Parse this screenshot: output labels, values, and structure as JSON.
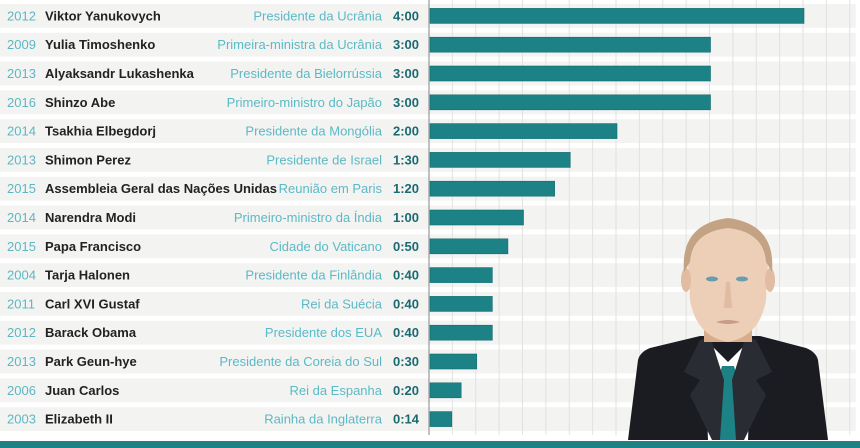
{
  "chart_data": {
    "type": "bar",
    "orientation": "horizontal",
    "unit": "minutes",
    "xlim": [
      0,
      270
    ],
    "grid": true,
    "bar_color": "#1d8286",
    "rows": [
      {
        "year": "2012",
        "name": "Viktor Yanukovych",
        "role": "Presidente da Ucrânia",
        "label": "4:00",
        "value": 240
      },
      {
        "year": "2009",
        "name": "Yulia Timoshenko",
        "role": "Primeira-ministra da Ucrânia",
        "label": "3:00",
        "value": 180
      },
      {
        "year": "2013",
        "name": "Alyaksandr Lukashenka",
        "role": "Presidente da Bielorrússia",
        "label": "3:00",
        "value": 180
      },
      {
        "year": "2016",
        "name": "Shinzo Abe",
        "role": "Primeiro-ministro do Japão",
        "label": "3:00",
        "value": 180
      },
      {
        "year": "2014",
        "name": "Tsakhia Elbegdorj",
        "role": "Presidente da Mongólia",
        "label": "2:00",
        "value": 120
      },
      {
        "year": "2013",
        "name": "Shimon Perez",
        "role": "Presidente de Israel",
        "label": "1:30",
        "value": 90
      },
      {
        "year": "2015",
        "name": "Assembleia Geral das Nações Unidas",
        "role": "Reunião em Paris",
        "label": "1:20",
        "value": 80
      },
      {
        "year": "2014",
        "name": "Narendra Modi",
        "role": "Primeiro-ministro da Índia",
        "label": "1:00",
        "value": 60
      },
      {
        "year": "2015",
        "name": "Papa Francisco",
        "role": "Cidade do Vaticano",
        "label": "0:50",
        "value": 50
      },
      {
        "year": "2004",
        "name": "Tarja Halonen",
        "role": "Presidente da Finlândia",
        "label": "0:40",
        "value": 40
      },
      {
        "year": "2011",
        "name": "Carl XVI Gustaf",
        "role": "Rei da Suécia",
        "label": "0:40",
        "value": 40
      },
      {
        "year": "2012",
        "name": "Barack Obama",
        "role": "Presidente dos EUA",
        "label": "0:40",
        "value": 40
      },
      {
        "year": "2013",
        "name": "Park Geun-hye",
        "role": "Presidente da Coreia do Sul",
        "label": "0:30",
        "value": 30
      },
      {
        "year": "2006",
        "name": "Juan Carlos",
        "role": "Rei da Espanha",
        "label": "0:20",
        "value": 20
      },
      {
        "year": "2003",
        "name": "Elizabeth II",
        "role": "Rainha da Inglaterra",
        "label": "0:14",
        "value": 14
      }
    ]
  }
}
